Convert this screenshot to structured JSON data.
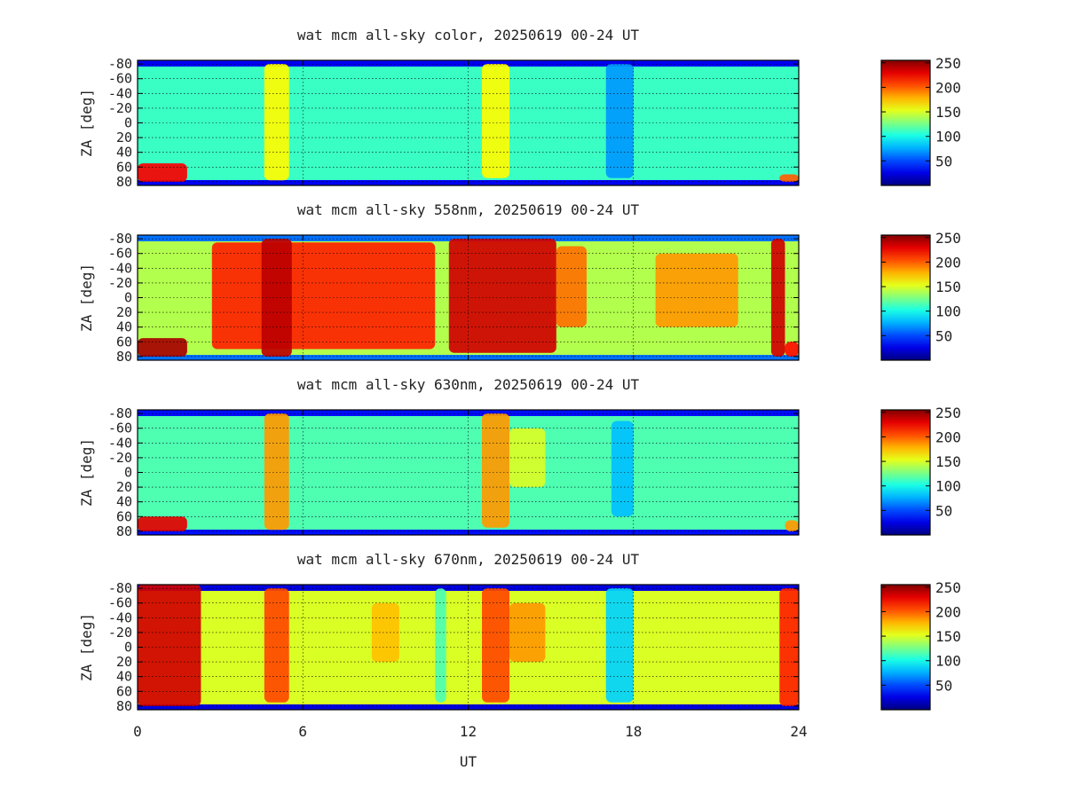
{
  "chart_data": [
    {
      "type": "heatmap",
      "title": "wat mcm all-sky color, 20250619 00-24 UT",
      "ylabel": "ZA [deg]",
      "xlim": [
        0,
        24
      ],
      "ylim": [
        -85,
        85
      ],
      "y_ticks": [
        "-80",
        "-60",
        "-40",
        "-20",
        "0",
        "20",
        "40",
        "60",
        "80"
      ],
      "colorbar": {
        "range": [
          0,
          255
        ],
        "ticks": [
          "50",
          "100",
          "150",
          "200",
          "250"
        ]
      },
      "base_level": 110,
      "edge_low_level": 30,
      "features": [
        {
          "x": [
            4.6,
            5.5
          ],
          "za": [
            -80,
            78
          ],
          "level": 160
        },
        {
          "x": [
            12.5,
            13.5
          ],
          "za": [
            -80,
            75
          ],
          "level": 160
        },
        {
          "x": [
            17.0,
            18.0
          ],
          "za": [
            -80,
            75
          ],
          "level": 70
        },
        {
          "x": [
            0.0,
            1.8
          ],
          "za": [
            55,
            80
          ],
          "level": 225
        },
        {
          "x": [
            23.3,
            24.0
          ],
          "za": [
            70,
            80
          ],
          "level": 200
        }
      ]
    },
    {
      "type": "heatmap",
      "title": "wat mcm all-sky 558nm, 20250619 00-24 UT",
      "ylabel": "ZA [deg]",
      "xlim": [
        0,
        24
      ],
      "ylim": [
        -85,
        85
      ],
      "y_ticks": [
        "-80",
        "-60",
        "-40",
        "-20",
        "0",
        "20",
        "40",
        "60",
        "80"
      ],
      "colorbar": {
        "range": [
          0,
          255
        ],
        "ticks": [
          "50",
          "100",
          "150",
          "200",
          "250"
        ]
      },
      "base_level": 140,
      "edge_low_level": 60,
      "features": [
        {
          "x": [
            2.7,
            10.8
          ],
          "za": [
            -75,
            70
          ],
          "level": 215
        },
        {
          "x": [
            4.5,
            5.6
          ],
          "za": [
            -80,
            80
          ],
          "level": 240
        },
        {
          "x": [
            11.3,
            15.2
          ],
          "za": [
            -80,
            75
          ],
          "level": 235
        },
        {
          "x": [
            15.2,
            16.3
          ],
          "za": [
            -70,
            40
          ],
          "level": 195
        },
        {
          "x": [
            18.8,
            21.8
          ],
          "za": [
            -60,
            40
          ],
          "level": 185
        },
        {
          "x": [
            0.0,
            1.8
          ],
          "za": [
            55,
            80
          ],
          "level": 245
        },
        {
          "x": [
            23.0,
            23.5
          ],
          "za": [
            -80,
            80
          ],
          "level": 235
        },
        {
          "x": [
            23.5,
            24.0
          ],
          "za": [
            60,
            80
          ],
          "level": 220
        }
      ]
    },
    {
      "type": "heatmap",
      "title": "wat mcm all-sky 630nm, 20250619 00-24 UT",
      "ylabel": "ZA [deg]",
      "xlim": [
        0,
        24
      ],
      "ylim": [
        -85,
        85
      ],
      "y_ticks": [
        "-80",
        "-60",
        "-40",
        "-20",
        "0",
        "20",
        "40",
        "60",
        "80"
      ],
      "colorbar": {
        "range": [
          0,
          255
        ],
        "ticks": [
          "50",
          "100",
          "150",
          "200",
          "250"
        ]
      },
      "base_level": 115,
      "edge_low_level": 35,
      "features": [
        {
          "x": [
            4.6,
            5.5
          ],
          "za": [
            -80,
            78
          ],
          "level": 185
        },
        {
          "x": [
            12.5,
            13.5
          ],
          "za": [
            -80,
            75
          ],
          "level": 185
        },
        {
          "x": [
            13.5,
            14.8
          ],
          "za": [
            -60,
            20
          ],
          "level": 150
        },
        {
          "x": [
            17.2,
            18.0
          ],
          "za": [
            -70,
            60
          ],
          "level": 80
        },
        {
          "x": [
            0.0,
            1.8
          ],
          "za": [
            60,
            80
          ],
          "level": 230
        },
        {
          "x": [
            23.5,
            24.0
          ],
          "za": [
            65,
            80
          ],
          "level": 185
        }
      ]
    },
    {
      "type": "heatmap",
      "title": "wat mcm all-sky 670nm, 20250619 00-24 UT",
      "xlabel": "UT",
      "ylabel": "ZA [deg]",
      "xlim": [
        0,
        24
      ],
      "x_ticks": [
        "0",
        "6",
        "12",
        "18",
        "24"
      ],
      "ylim": [
        -85,
        85
      ],
      "y_ticks": [
        "-80",
        "-60",
        "-40",
        "-20",
        "0",
        "20",
        "40",
        "60",
        "80"
      ],
      "colorbar": {
        "range": [
          0,
          255
        ],
        "ticks": [
          "50",
          "100",
          "150",
          "200",
          "250"
        ]
      },
      "base_level": 150,
      "edge_low_level": 25,
      "features": [
        {
          "x": [
            0.0,
            2.3
          ],
          "za": [
            -85,
            80
          ],
          "level": 235
        },
        {
          "x": [
            4.6,
            5.5
          ],
          "za": [
            -80,
            75
          ],
          "level": 205
        },
        {
          "x": [
            12.5,
            13.5
          ],
          "za": [
            -80,
            75
          ],
          "level": 205
        },
        {
          "x": [
            13.5,
            14.8
          ],
          "za": [
            -60,
            20
          ],
          "level": 185
        },
        {
          "x": [
            8.5,
            9.5
          ],
          "za": [
            -60,
            20
          ],
          "level": 175
        },
        {
          "x": [
            17.0,
            18.0
          ],
          "za": [
            -80,
            75
          ],
          "level": 85
        },
        {
          "x": [
            10.8,
            11.2
          ],
          "za": [
            -80,
            75
          ],
          "level": 115
        },
        {
          "x": [
            23.3,
            24.0
          ],
          "za": [
            -80,
            80
          ],
          "level": 215
        }
      ]
    }
  ]
}
